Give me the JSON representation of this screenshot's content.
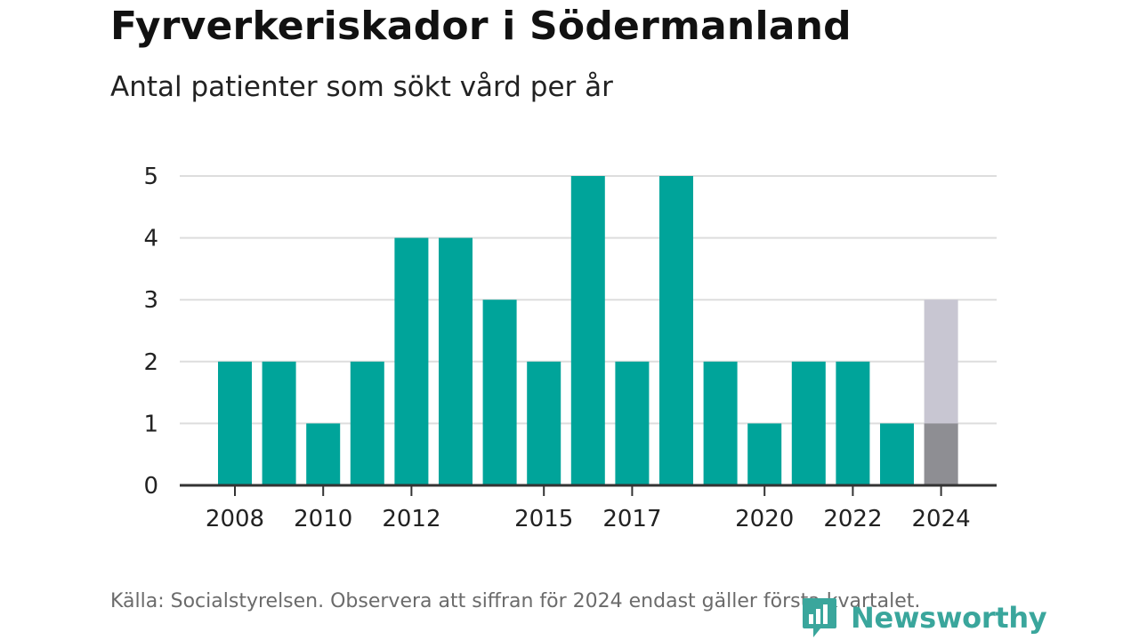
{
  "title": "Fyrverkeriskador i Södermanland",
  "subtitle": "Antal patienter som sökt vård per år",
  "source": "Källa: Socialstyrelsen. Observera att siffran för 2024 endast gäller första kvartalet.",
  "logo": {
    "text": "Newsworthy",
    "icon": "newsworthy-logo-icon"
  },
  "colors": {
    "bar": "#00a49a",
    "highlight_actual": "#8e8e93",
    "highlight_projected": "#c8c6d2",
    "grid": "#dddddd",
    "axis": "#333333",
    "logo": "#3aa69c"
  },
  "chart_data": {
    "type": "bar",
    "title": "Fyrverkeriskador i Södermanland",
    "subtitle": "Antal patienter som sökt vård per år",
    "categories": [
      "2008",
      "2009",
      "2010",
      "2011",
      "2012",
      "2013",
      "2014",
      "2015",
      "2016",
      "2017",
      "2018",
      "2019",
      "2020",
      "2021",
      "2022",
      "2023",
      "2024"
    ],
    "values": [
      2,
      2,
      1,
      2,
      4,
      4,
      3,
      2,
      5,
      2,
      5,
      2,
      1,
      2,
      2,
      1,
      1
    ],
    "highlight": {
      "category": "2024",
      "actual": 1,
      "estimated_total": 3
    },
    "x_tick_labels": [
      "2008",
      "2010",
      "2012",
      "2015",
      "2017",
      "2020",
      "2022",
      "2024"
    ],
    "y_ticks": [
      0,
      1,
      2,
      3,
      4,
      5
    ],
    "ylim": [
      0,
      5
    ],
    "xlabel": "",
    "ylabel": "",
    "grid": true,
    "legend": "none"
  }
}
